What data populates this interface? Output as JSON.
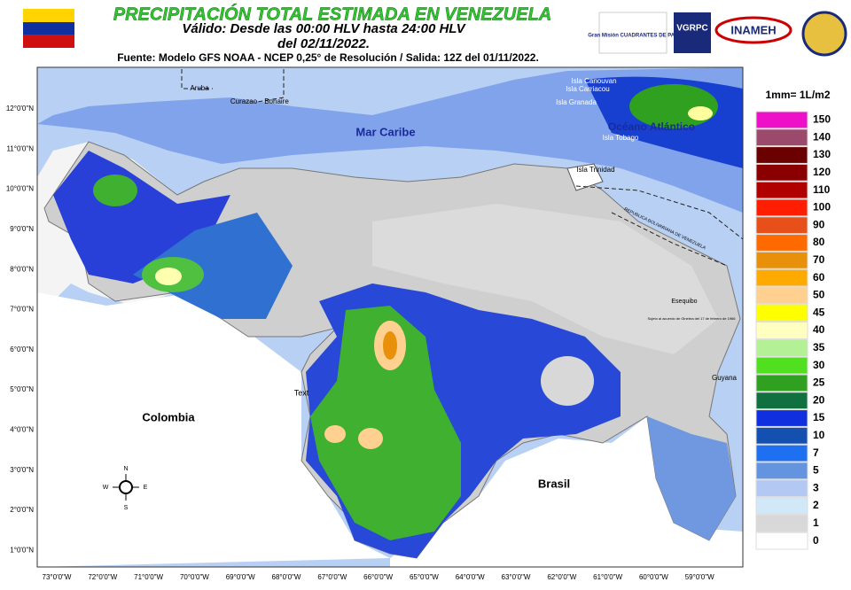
{
  "header": {
    "title": "PRECIPITACIÓN TOTAL ESTIMADA EN VENEZUELA",
    "validity": "Válido: Desde las 00:00 HLV hasta 24:00 HLV",
    "date": "del 02/11/2022.",
    "source": "Fuente: Modelo GFS NOAA - NCEP 0,25° de Resolución / Salida: 12Z del 01/11/2022."
  },
  "logos": {
    "cuadrantes": "Gran Misión CUADRANTES DE PAZ",
    "vgrpc": "VGRPC",
    "inameh": "INAMEH"
  },
  "legend": {
    "title": "1mm= 1L/m2",
    "items": [
      {
        "value": 150,
        "color": "#ee10c8"
      },
      {
        "value": 140,
        "color": "#9c4a6c"
      },
      {
        "value": 130,
        "color": "#6a0000"
      },
      {
        "value": 120,
        "color": "#8a0000"
      },
      {
        "value": 110,
        "color": "#b00000"
      },
      {
        "value": 100,
        "color": "#ff1e00"
      },
      {
        "value": 90,
        "color": "#e8501a"
      },
      {
        "value": 80,
        "color": "#ff6a00"
      },
      {
        "value": 70,
        "color": "#e8900a"
      },
      {
        "value": 60,
        "color": "#ffaa00"
      },
      {
        "value": 50,
        "color": "#ffd090"
      },
      {
        "value": 45,
        "color": "#ffff00"
      },
      {
        "value": 40,
        "color": "#ffffc0"
      },
      {
        "value": 35,
        "color": "#b4f096"
      },
      {
        "value": 30,
        "color": "#50e020"
      },
      {
        "value": 25,
        "color": "#30a020"
      },
      {
        "value": 20,
        "color": "#107040"
      },
      {
        "value": 15,
        "color": "#1030e0"
      },
      {
        "value": 10,
        "color": "#1450b0"
      },
      {
        "value": 7,
        "color": "#1e70f0"
      },
      {
        "value": 5,
        "color": "#6494e0"
      },
      {
        "value": 3,
        "color": "#b4c8f4"
      },
      {
        "value": 2,
        "color": "#d0e8f8"
      },
      {
        "value": 1,
        "color": "#d8d8d8"
      },
      {
        "value": 0,
        "color": "#ffffff"
      }
    ]
  },
  "lat_labels": [
    "12°0'0\"N",
    "11°0'0\"N",
    "10°0'0\"N",
    "9°0'0\"N",
    "8°0'0\"N",
    "7°0'0\"N",
    "6°0'0\"N",
    "5°0'0\"N",
    "4°0'0\"N",
    "3°0'0\"N",
    "2°0'0\"N",
    "1°0'0\"N"
  ],
  "lon_labels": [
    "73°0'0\"W",
    "72°0'0\"W",
    "71°0'0\"W",
    "70°0'0\"W",
    "69°0'0\"W",
    "68°0'0\"W",
    "67°0'0\"W",
    "66°0'0\"W",
    "65°0'0\"W",
    "64°0'0\"W",
    "63°0'0\"W",
    "62°0'0\"W",
    "61°0'0\"W",
    "60°0'0\"W",
    "59°0'0\"W"
  ],
  "places": {
    "sea": "Mar Caribe",
    "ocean": "Océano Atlántico",
    "colombia": "Colombia",
    "brasil": "Brasil",
    "guyana": "Guyana",
    "aruba": "Aruba",
    "curazao": "Curazao",
    "bonaire": "Bonaire",
    "canouvan": "Isla Canouvan",
    "carriacou": "Isla Carriacou",
    "granada": "Isla Granada",
    "tobago": "Isla Tobago",
    "trinidad": "Isla Trinidad",
    "esequibo": "Esequibo",
    "esequibo_note": "Sujeto al acuerdo de Ginebra del 17 de febrero de 1966",
    "text": "Text",
    "border": "REPUBLICA BOLIVARIANA DE VENEZUELA"
  },
  "compass": {
    "n": "N",
    "s": "S",
    "e": "E",
    "w": "W"
  }
}
